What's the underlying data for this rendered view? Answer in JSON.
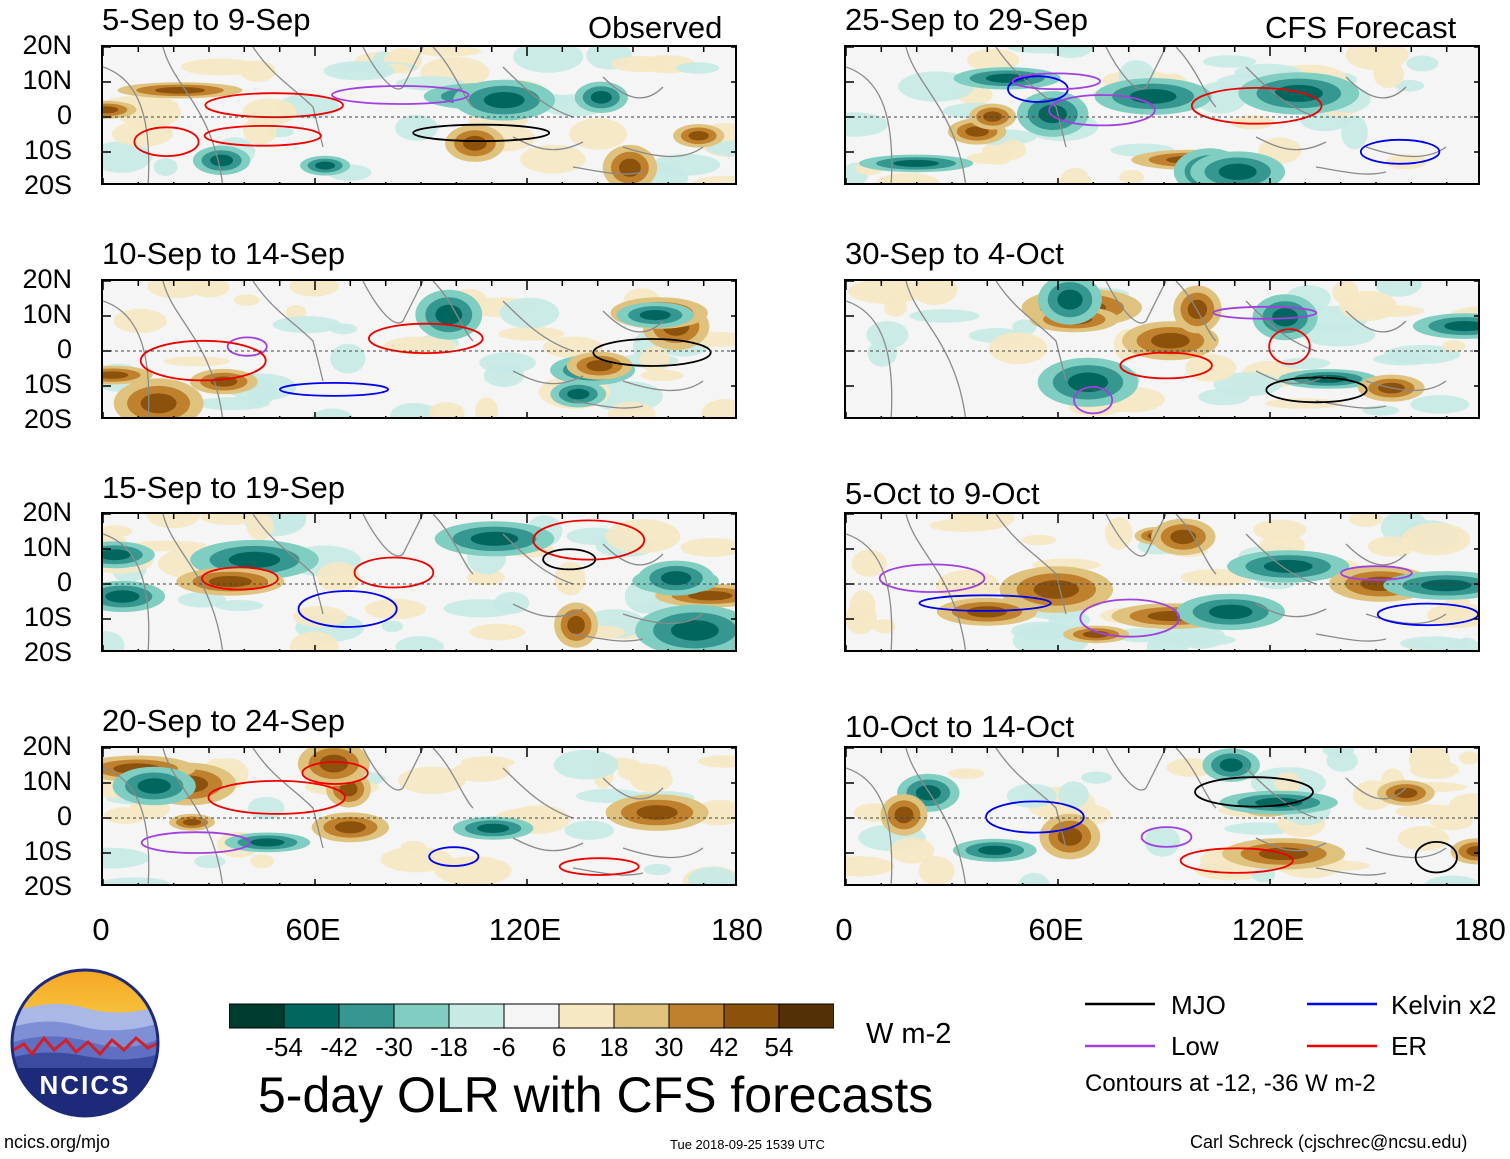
{
  "chart_data": {
    "type": "heatmap",
    "title": "5-day OLR with CFS forecasts",
    "columns": {
      "left": "Observed",
      "right": "CFS Forecast"
    },
    "x_ticks": [
      "0",
      "60E",
      "120E",
      "180"
    ],
    "y_ticks": [
      "20N",
      "10N",
      "0",
      "10S",
      "20S"
    ],
    "xlim": [
      0,
      180
    ],
    "ylim": [
      -20,
      20
    ],
    "panels": [
      {
        "id": "p1",
        "title": "5-Sep to 9-Sep",
        "column": "left"
      },
      {
        "id": "p2",
        "title": "10-Sep to 14-Sep",
        "column": "left"
      },
      {
        "id": "p3",
        "title": "15-Sep to 19-Sep",
        "column": "left"
      },
      {
        "id": "p4",
        "title": "20-Sep to 24-Sep",
        "column": "left"
      },
      {
        "id": "p5",
        "title": "25-Sep to 29-Sep",
        "column": "right"
      },
      {
        "id": "p6",
        "title": "30-Sep to 4-Oct",
        "column": "right"
      },
      {
        "id": "p7",
        "title": "5-Oct to 9-Oct",
        "column": "right"
      },
      {
        "id": "p8",
        "title": "10-Oct to 14-Oct",
        "column": "right"
      }
    ],
    "colorbar": {
      "labels": [
        "-54",
        "-42",
        "-30",
        "-18",
        "-6",
        "6",
        "18",
        "30",
        "42",
        "54"
      ],
      "colors": [
        "#003c30",
        "#01665e",
        "#35978f",
        "#80cdc1",
        "#c7eae5",
        "#f5f5f5",
        "#f6e8c3",
        "#dfc27d",
        "#bf812d",
        "#8c510a",
        "#543005"
      ],
      "units": "W m-2"
    },
    "contour_legend": [
      {
        "label": "MJO",
        "color": "#000000"
      },
      {
        "label": "Kelvin x2",
        "color": "#0000ee"
      },
      {
        "label": "Low",
        "color": "#a040e0"
      },
      {
        "label": "ER",
        "color": "#ee0000"
      }
    ],
    "contour_note": "Contours at -12, -36 W m-2"
  },
  "footer": {
    "logo_text": "NCICS",
    "url": "ncics.org/mjo",
    "timestamp": "Tue 2018-09-25 1539 UTC",
    "author": "Carl Schreck (cjschrec@ncsu.edu)"
  }
}
